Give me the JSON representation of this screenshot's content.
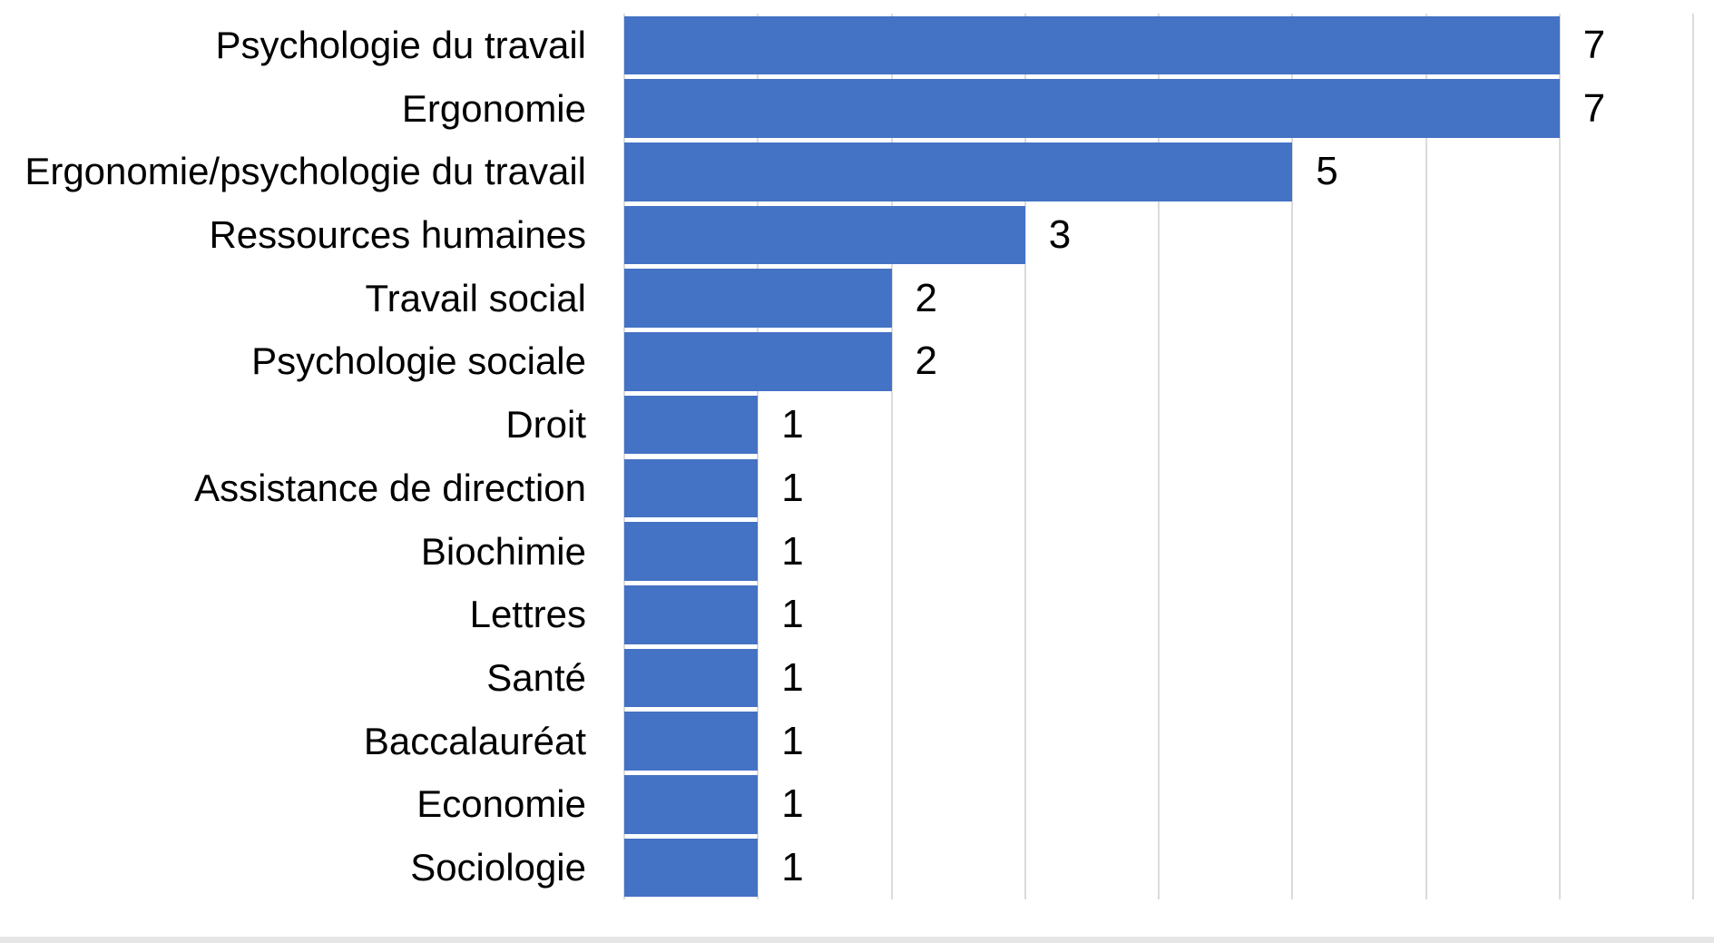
{
  "chart_data": {
    "type": "bar",
    "orientation": "horizontal",
    "title": "",
    "xlabel": "",
    "ylabel": "",
    "categories": [
      "Psychologie du travail",
      "Ergonomie",
      "Ergonomie/psychologie du travail",
      "Ressources humaines",
      "Travail social",
      "Psychologie sociale",
      "Droit",
      "Assistance de direction",
      "Biochimie",
      "Lettres",
      "Santé",
      "Baccalauréat",
      "Economie",
      "Sociologie"
    ],
    "values": [
      7,
      7,
      5,
      3,
      2,
      2,
      1,
      1,
      1,
      1,
      1,
      1,
      1,
      1
    ],
    "data_labels": [
      "7",
      "7",
      "5",
      "3",
      "2",
      "2",
      "1",
      "1",
      "1",
      "1",
      "1",
      "1",
      "1",
      "1"
    ],
    "xlim": [
      0,
      8
    ],
    "grid": {
      "vertical": true,
      "interval": 1,
      "horizontal": false
    },
    "legend_position": "none",
    "data_label_position": "outside-end"
  },
  "colors": {
    "bar_fill": "#4472C4",
    "gridline": "#DBDBDB",
    "label_text": "#000000",
    "value_text": "#000000",
    "background": "#FFFFFF",
    "bottom_strip": "#E7E6E6"
  }
}
